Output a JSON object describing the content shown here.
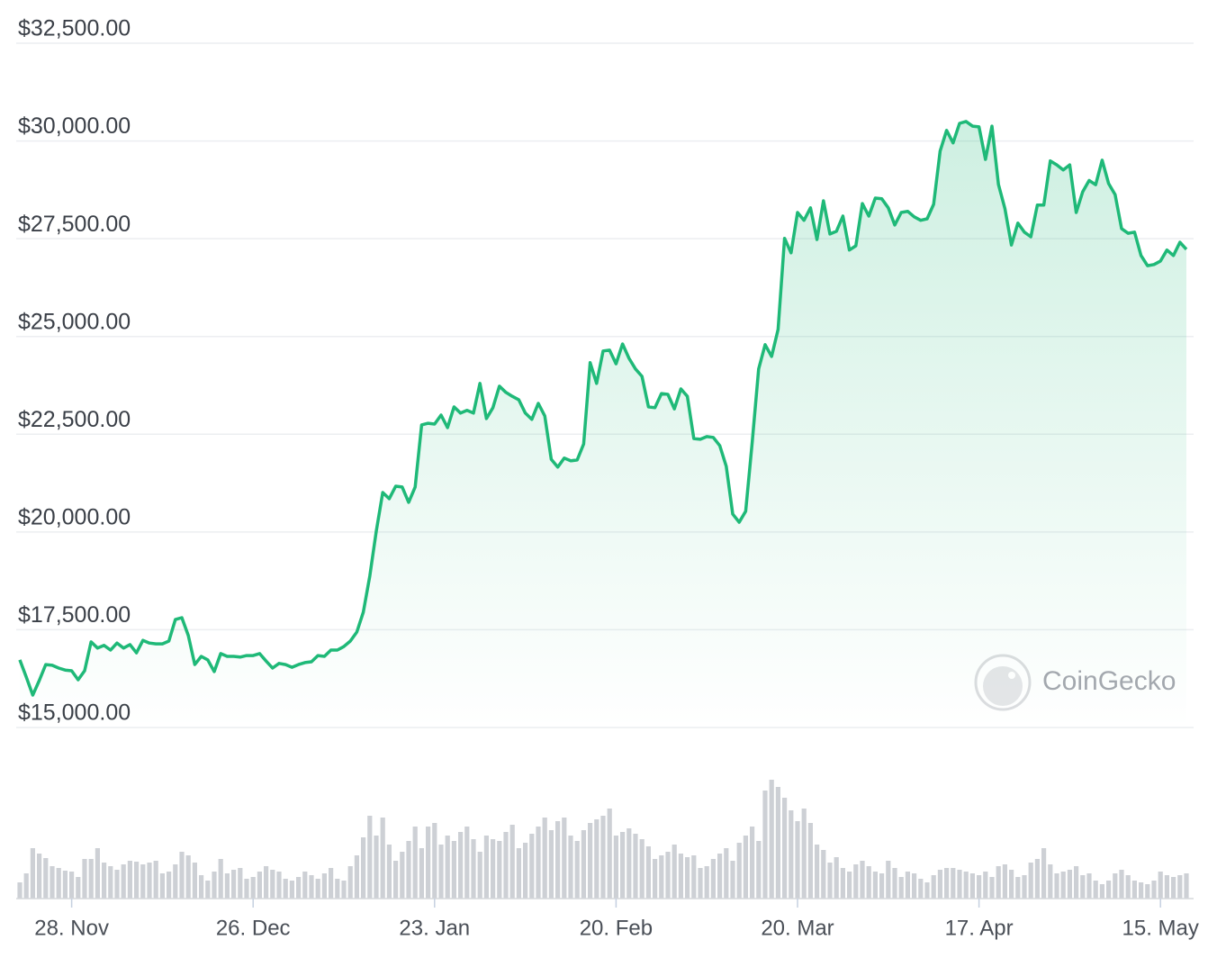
{
  "chart_data": {
    "type": "line",
    "watermark": "CoinGecko",
    "x": [
      0,
      1,
      2,
      3,
      4,
      5,
      6,
      7,
      8,
      9,
      10,
      11,
      12,
      13,
      14,
      15,
      16,
      17,
      18,
      19,
      20,
      21,
      22,
      23,
      24,
      25,
      26,
      27,
      28,
      29,
      30,
      31,
      32,
      33,
      34,
      35,
      36,
      37,
      38,
      39,
      40,
      41,
      42,
      43,
      44,
      45,
      46,
      47,
      48,
      49,
      50,
      51,
      52,
      53,
      54,
      55,
      56,
      57,
      58,
      59,
      60,
      61,
      62,
      63,
      64,
      65,
      66,
      67,
      68,
      69,
      70,
      71,
      72,
      73,
      74,
      75,
      76,
      77,
      78,
      79,
      80,
      81,
      82,
      83,
      84,
      85,
      86,
      87,
      88,
      89,
      90,
      91,
      92,
      93,
      94,
      95,
      96,
      97,
      98,
      99,
      100,
      101,
      102,
      103,
      104,
      105,
      106,
      107,
      108,
      109,
      110,
      111,
      112,
      113,
      114,
      115,
      116,
      117,
      118,
      119,
      120,
      121,
      122,
      123,
      124,
      125,
      126,
      127,
      128,
      129,
      130,
      131,
      132,
      133,
      134,
      135,
      136,
      137,
      138,
      139,
      140,
      141,
      142,
      143,
      144,
      145,
      146,
      147,
      148,
      149,
      150,
      151,
      152,
      153,
      154,
      155,
      156,
      157,
      158,
      159,
      160,
      161,
      162,
      163,
      164,
      165,
      166,
      167,
      168,
      169,
      170,
      171,
      172,
      173,
      174,
      175,
      176,
      177,
      178,
      179,
      180
    ],
    "series": [
      {
        "color": "#1fb978",
        "values": [
          16730,
          16290,
          15830,
          16200,
          16610,
          16590,
          16520,
          16470,
          16450,
          16220,
          16450,
          17190,
          17030,
          17100,
          16980,
          17160,
          17030,
          17120,
          16910,
          17230,
          17160,
          17140,
          17140,
          17210,
          17760,
          17810,
          17350,
          16610,
          16820,
          16730,
          16430,
          16890,
          16820,
          16820,
          16800,
          16840,
          16840,
          16890,
          16700,
          16520,
          16640,
          16610,
          16540,
          16610,
          16660,
          16680,
          16840,
          16820,
          16980,
          16980,
          17070,
          17210,
          17440,
          17950,
          18870,
          20020,
          21010,
          20850,
          21170,
          21150,
          20760,
          21150,
          22740,
          22780,
          22760,
          22990,
          22670,
          23200,
          23040,
          23110,
          23040,
          23800,
          22900,
          23180,
          23730,
          23570,
          23470,
          23380,
          23040,
          22880,
          23290,
          22970,
          21860,
          21660,
          21890,
          21820,
          21840,
          22250,
          24330,
          23800,
          24630,
          24650,
          24300,
          24810,
          24440,
          24170,
          23980,
          23200,
          23180,
          23540,
          23520,
          23150,
          23660,
          23470,
          22390,
          22370,
          22440,
          22420,
          22210,
          21680,
          20460,
          20250,
          20530,
          22280,
          24170,
          24790,
          24490,
          25180,
          27510,
          27140,
          28170,
          27970,
          28290,
          27480,
          28470,
          27620,
          27690,
          28080,
          27210,
          27320,
          28400,
          28080,
          28540,
          28520,
          28290,
          27850,
          28170,
          28200,
          28060,
          27970,
          28010,
          28380,
          29740,
          30270,
          29950,
          30450,
          30500,
          30380,
          30360,
          29530,
          30380,
          28890,
          28270,
          27340,
          27900,
          27670,
          27550,
          28360,
          28360,
          29490,
          29390,
          29260,
          29390,
          28170,
          28700,
          28990,
          28880,
          29510,
          28910,
          28630,
          27760,
          27640,
          27670,
          27070,
          26810,
          26840,
          26930,
          27210,
          27070,
          27410,
          27230
        ]
      }
    ],
    "volume": {
      "color": "#cdd0d5",
      "ylim": [
        0,
        140
      ],
      "values": [
        18,
        28,
        56,
        50,
        45,
        36,
        34,
        31,
        30,
        24,
        44,
        44,
        56,
        40,
        36,
        32,
        38,
        42,
        41,
        38,
        40,
        42,
        28,
        30,
        38,
        52,
        48,
        40,
        26,
        20,
        30,
        44,
        28,
        32,
        34,
        22,
        24,
        30,
        36,
        32,
        30,
        22,
        20,
        24,
        30,
        26,
        22,
        28,
        34,
        22,
        20,
        36,
        48,
        68,
        92,
        70,
        90,
        60,
        42,
        52,
        64,
        80,
        56,
        80,
        84,
        60,
        70,
        64,
        74,
        80,
        66,
        52,
        70,
        66,
        64,
        74,
        82,
        56,
        62,
        72,
        80,
        90,
        76,
        86,
        90,
        70,
        64,
        76,
        84,
        88,
        92,
        100,
        70,
        74,
        78,
        72,
        66,
        58,
        44,
        48,
        52,
        60,
        50,
        46,
        48,
        34,
        36,
        44,
        50,
        56,
        42,
        62,
        70,
        80,
        64,
        120,
        132,
        124,
        112,
        98,
        86,
        100,
        84,
        60,
        54,
        40,
        46,
        34,
        30,
        38,
        42,
        36,
        30,
        28,
        42,
        34,
        24,
        30,
        28,
        22,
        18,
        26,
        32,
        34,
        34,
        32,
        30,
        28,
        26,
        30,
        24,
        36,
        38,
        32,
        24,
        26,
        40,
        44,
        56,
        38,
        28,
        30,
        32,
        36,
        26,
        28,
        20,
        16,
        20,
        28,
        32,
        26,
        20,
        18,
        16,
        20,
        30,
        26,
        24,
        26,
        28
      ]
    },
    "xlim": [
      0,
      180
    ],
    "xticks": [
      {
        "value": 8,
        "label": "28. Nov"
      },
      {
        "value": 36,
        "label": "26. Dec"
      },
      {
        "value": 64,
        "label": "23. Jan"
      },
      {
        "value": 92,
        "label": "20. Feb"
      },
      {
        "value": 120,
        "label": "20. Mar"
      },
      {
        "value": 148,
        "label": "17. Apr"
      },
      {
        "value": 176,
        "label": "15. May"
      }
    ],
    "ylim": [
      15000,
      32500
    ],
    "yticks": [
      {
        "value": 15000,
        "label": "$15,000.00"
      },
      {
        "value": 17500,
        "label": "$17,500.00"
      },
      {
        "value": 20000,
        "label": "$20,000.00"
      },
      {
        "value": 22500,
        "label": "$22,500.00"
      },
      {
        "value": 25000,
        "label": "$25,000.00"
      },
      {
        "value": 27500,
        "label": "$27,500.00"
      },
      {
        "value": 30000,
        "label": "$30,000.00"
      },
      {
        "value": 32500,
        "label": "$32,500.00"
      }
    ],
    "grid": true
  }
}
